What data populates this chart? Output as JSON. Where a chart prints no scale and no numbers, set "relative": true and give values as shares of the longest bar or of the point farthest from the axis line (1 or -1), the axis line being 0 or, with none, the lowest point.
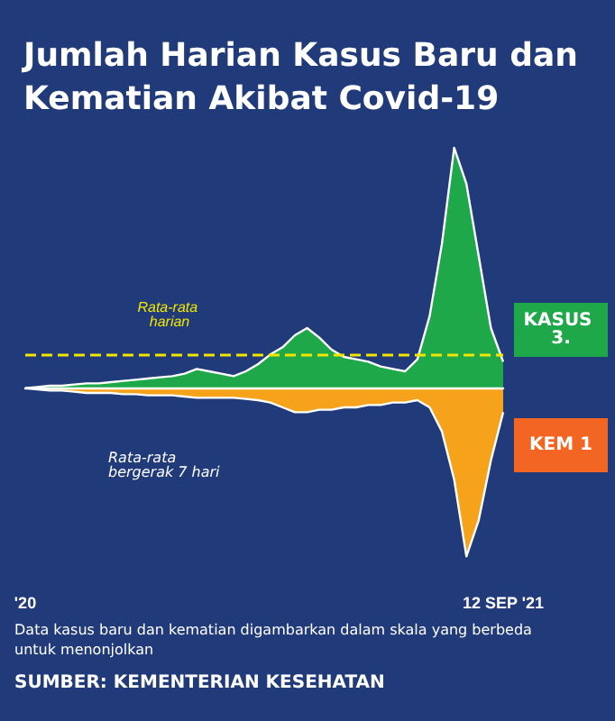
{
  "chart_data": {
    "type": "area",
    "title": "Jumlah Harian Kasus Baru dan Kematian Akibat Covid-19",
    "relative": true,
    "marker": "none",
    "categories": [
      "'20",
      null,
      null,
      null,
      null,
      null,
      null,
      null,
      null,
      null,
      null,
      null,
      null,
      null,
      null,
      null,
      null,
      null,
      null,
      null,
      null,
      null,
      null,
      null,
      null,
      null,
      null,
      null,
      null,
      null,
      null,
      null,
      null,
      null,
      null,
      null,
      null,
      null,
      null,
      "12 SEP '21"
    ],
    "series": [
      {
        "color": "#1fa84a",
        "values": [
          0,
          0.005,
          0.01,
          0.01,
          0.015,
          0.02,
          0.02,
          0.025,
          0.03,
          0.035,
          0.04,
          0.045,
          0.05,
          0.06,
          0.08,
          0.07,
          0.06,
          0.05,
          0.07,
          0.1,
          0.14,
          0.17,
          0.22,
          0.25,
          0.21,
          0.16,
          0.13,
          0.12,
          0.11,
          0.09,
          0.08,
          0.07,
          0.12,
          0.3,
          0.6,
          1,
          0.85,
          0.55,
          0.25,
          0.11
        ]
      },
      {
        "color": "#f7a21b",
        "values": [
          0,
          -0.005,
          -0.01,
          -0.01,
          -0.015,
          -0.02,
          -0.02,
          -0.02,
          -0.025,
          -0.025,
          -0.03,
          -0.03,
          -0.03,
          -0.035,
          -0.04,
          -0.04,
          -0.04,
          -0.04,
          -0.045,
          -0.05,
          -0.06,
          -0.08,
          -0.1,
          -0.1,
          -0.09,
          -0.09,
          -0.08,
          -0.08,
          -0.07,
          -0.07,
          -0.06,
          -0.06,
          -0.05,
          -0.08,
          -0.18,
          -0.38,
          -0.7,
          -0.55,
          -0.3,
          -0.1
        ]
      }
    ],
    "ref_lines": [
      {
        "axis": "y",
        "value": 0.14,
        "label": "Rata-rata harian",
        "color": "#f2e600",
        "line_style": "dashed"
      }
    ],
    "annotations": [
      "Rata-rata bergerak 7 hari",
      "KASUS 3.",
      "KEM 1",
      "Data kasus baru dan kematian digambarkan dalam skala yang berbeda untuk menonjolkan",
      "SUMBER: KEMENTERIAN KESEHATAN"
    ]
  }
}
